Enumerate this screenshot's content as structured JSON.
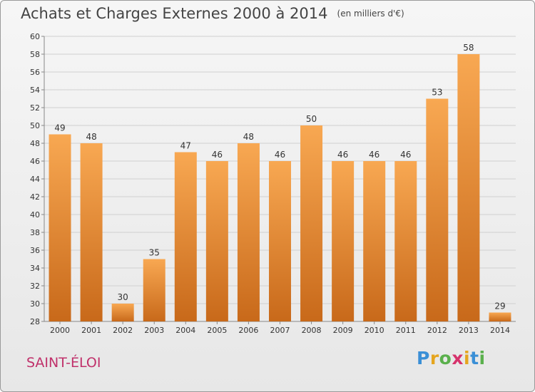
{
  "header": {
    "title": "Achats et Charges Externes 2000 à 2014",
    "unit": "(en milliers d'€)"
  },
  "commune": "SAINT-ÉLOI",
  "brand": {
    "letters": [
      "P",
      "r",
      "o",
      "x",
      "i",
      "t",
      "i"
    ],
    "colors": [
      "#3a8fd6",
      "#e5a51f",
      "#5ab04c",
      "#d6336c",
      "#e5a51f",
      "#3a8fd6",
      "#5ab04c"
    ]
  },
  "colors": {
    "bar_light": "#f8a852",
    "bar_dark": "#c8691a",
    "grid": "#d0d0d0",
    "axis": "#888888"
  },
  "chart_data": {
    "type": "bar",
    "title": "Achats et Charges Externes 2000 à 2014",
    "subtitle": "(en milliers d'€)",
    "categories": [
      "2000",
      "2001",
      "2002",
      "2003",
      "2004",
      "2005",
      "2006",
      "2007",
      "2008",
      "2009",
      "2010",
      "2011",
      "2012",
      "2013",
      "2014"
    ],
    "values": [
      49,
      48,
      30,
      35,
      47,
      46,
      48,
      46,
      50,
      46,
      46,
      46,
      53,
      58,
      29
    ],
    "ylim": [
      28,
      60
    ],
    "yticks": [
      28,
      30,
      32,
      34,
      36,
      38,
      40,
      42,
      44,
      46,
      48,
      50,
      52,
      54,
      56,
      58,
      60
    ],
    "grid": true,
    "xlabel": "",
    "ylabel": ""
  }
}
